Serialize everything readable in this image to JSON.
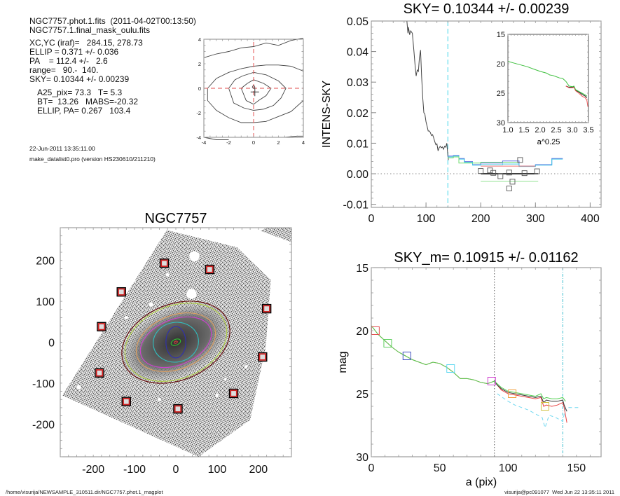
{
  "info": {
    "file_line": "NGC7757.phot.1.fits  (2011-04-02T00:13:50)",
    "mask_line": "NGC7757.1.final_mask_oulu.fits",
    "xcyc": "XC,YC (iraf)=   284.15, 278.73",
    "ellip": "ELLIP = 0.371 +/- 0.036",
    "pa": "PA    = 112.4 +/-   2.6",
    "range": "range=   90.-  140.",
    "sky": "SKY= 0.10344 +/- 0.00239",
    "a25": "A25_pix= 73.3   T= 5.3",
    "bt": "BT=  13.26   MABS=-20.32",
    "ellip_pa": "ELLIP, PA= 0.267   103.4",
    "date": "22-Jun-2011 13:35:11.00",
    "program": "make_datalist0.pro (version HS230610/211210)"
  },
  "footer": {
    "path": "/home/visurija/NEWSAMPLE_310511.dir/NGC7757.phot.1_magplot",
    "user_stamp": "visurija@pc091077  Wed Jun 22 13:35:11 2011"
  },
  "chart_data": [
    {
      "id": "centroid-contour",
      "type": "line",
      "title": "",
      "xlim": [
        -4,
        4
      ],
      "ylim": [
        -4,
        4
      ],
      "xticks": [
        "-4",
        "-2",
        "0",
        "2",
        "4"
      ],
      "yticks": [
        "-4",
        "-2",
        "0",
        "2",
        "4"
      ],
      "crosshair": {
        "x": 0,
        "y": 0,
        "color": "#e87070"
      },
      "center_marker": {
        "x": 0.1,
        "y": -0.3
      },
      "contours": [
        [
          [
            -4,
            2.5
          ],
          [
            -3,
            2.8
          ],
          [
            -2,
            3.0
          ],
          [
            -1,
            3.3
          ],
          [
            0,
            3.4
          ],
          [
            1,
            3.7
          ],
          [
            2,
            3.5
          ],
          [
            3,
            3.9
          ],
          [
            4,
            4.1
          ]
        ],
        [
          [
            4,
            1.4
          ],
          [
            3,
            1.8
          ],
          [
            2,
            1.9
          ],
          [
            1,
            1.9
          ],
          [
            0,
            1.8
          ],
          [
            -1,
            1.6
          ],
          [
            -2,
            1.3
          ],
          [
            -3,
            0.8
          ],
          [
            -3.7,
            0
          ],
          [
            -3.7,
            -1
          ],
          [
            -3,
            -1.8
          ],
          [
            -2,
            -2.4
          ],
          [
            -1,
            -2.8
          ],
          [
            0,
            -2.8
          ],
          [
            1,
            -2.7
          ],
          [
            2,
            -2.3
          ],
          [
            3,
            -1.9
          ],
          [
            4,
            -1.0
          ]
        ],
        [
          [
            -2,
            0
          ],
          [
            -1.5,
            0.7
          ],
          [
            -0.9,
            1.0
          ],
          [
            0,
            1.3
          ],
          [
            1,
            1.1
          ],
          [
            2,
            0.6
          ],
          [
            2.6,
            0
          ],
          [
            2.2,
            -0.8
          ],
          [
            1.6,
            -1.4
          ],
          [
            0.8,
            -1.7
          ],
          [
            0,
            -1.8
          ],
          [
            -0.8,
            -1.6
          ],
          [
            -1.6,
            -1.2
          ],
          [
            -2,
            0
          ]
        ],
        [
          [
            -1,
            0
          ],
          [
            -0.5,
            0.4
          ],
          [
            0,
            0.7
          ],
          [
            0.8,
            0.4
          ],
          [
            1.4,
            0
          ],
          [
            1,
            -0.6
          ],
          [
            0.4,
            -1.0
          ],
          [
            0,
            -1.3
          ],
          [
            -0.6,
            -1.0
          ],
          [
            -1,
            0
          ]
        ],
        [
          [
            -4,
            -4
          ],
          [
            -3,
            -4.2
          ],
          [
            -2,
            -4.2
          ]
        ],
        [
          [
            2.5,
            -4
          ],
          [
            3.5,
            -3.9
          ],
          [
            4,
            -3.9
          ]
        ]
      ]
    },
    {
      "id": "intens-sky",
      "type": "line",
      "title": "SKY= 0.10344 +/- 0.00239",
      "xlabel": "",
      "ylabel": "INTENS-SKY",
      "xlim": [
        0,
        420
      ],
      "ylim": [
        -0.011,
        0.05
      ],
      "xticks": [
        0,
        100,
        200,
        300,
        400
      ],
      "yticks": [
        -0.01,
        0.0,
        0.01,
        0.02,
        0.03,
        0.04,
        0.05
      ],
      "ytick_labels": [
        "-0.01",
        "0.00",
        "0.01",
        "0.02",
        "0.03",
        "0.04",
        "0.05"
      ],
      "vline": {
        "x": 140,
        "color": "#6fe0f0",
        "style": "dashed"
      },
      "hline": {
        "y": 0,
        "style": "dotted"
      },
      "series": [
        {
          "name": "profile",
          "color": "#444444",
          "x": [
            65,
            67,
            68,
            70,
            72,
            75,
            78,
            80,
            82,
            84,
            86,
            88,
            90,
            92,
            94,
            96,
            98,
            100,
            102,
            104,
            106,
            108,
            110,
            112,
            114,
            116,
            118,
            120,
            122,
            124,
            126,
            128,
            130,
            132,
            134,
            136,
            138,
            140,
            141
          ],
          "y": [
            0.05,
            0.046,
            0.048,
            0.0455,
            0.0468,
            0.046,
            0.04,
            0.0355,
            0.032,
            0.034,
            0.0335,
            0.038,
            0.0405,
            0.032,
            0.025,
            0.02,
            0.0195,
            0.017,
            0.0155,
            0.014,
            0.014,
            0.0135,
            0.0125,
            0.0128,
            0.0118,
            0.0105,
            0.0095,
            0.0098,
            0.0075,
            0.0085,
            0.009,
            0.0085,
            0.0088,
            0.008,
            0.009,
            0.0087,
            0.01,
            0.006,
            0.0045
          ]
        },
        {
          "name": "step-blue",
          "color": "#6070e0",
          "x": [
            140,
            150,
            150,
            160,
            160,
            170,
            170,
            185,
            185,
            200,
            200,
            240,
            240,
            270,
            270,
            300,
            300,
            330,
            330,
            350
          ],
          "y": [
            0.0058,
            0.0058,
            0.006,
            0.006,
            0.005,
            0.005,
            0.004,
            0.004,
            0.003,
            0.003,
            0.0035,
            0.0035,
            0.0042,
            0.0042,
            0.0025,
            0.0025,
            0.003,
            0.003,
            0.005,
            0.005
          ]
        },
        {
          "name": "step-cyan",
          "color": "#40c8e8",
          "x": [
            140,
            150,
            150,
            160,
            160,
            170,
            170,
            185,
            185,
            200,
            200,
            240,
            240,
            270,
            270,
            300,
            300,
            330,
            330,
            350
          ],
          "y": [
            0.0055,
            0.0055,
            0.0058,
            0.0058,
            0.0048,
            0.0048,
            0.0038,
            0.0038,
            0.0028,
            0.0028,
            0.003,
            0.003,
            0.0032,
            0.0032,
            0.0024,
            0.0024,
            0.0028,
            0.0028,
            0.0048,
            0.0048
          ]
        },
        {
          "name": "step-green",
          "color": "#70dd70",
          "x": [
            140,
            150,
            150,
            160,
            160,
            200,
            200,
            270
          ],
          "y": [
            0.0052,
            0.0052,
            0.0055,
            0.0055,
            0.0035,
            0.0035,
            0.0038,
            0.0038
          ]
        },
        {
          "name": "sky-red",
          "color": "#f07070",
          "x": [
            200,
            300
          ],
          "y": [
            0.0025,
            0.0025
          ]
        },
        {
          "name": "sky-black",
          "color": "#000000",
          "x": [
            200,
            305
          ],
          "y": [
            0.0,
            0.0
          ]
        },
        {
          "name": "sky-green",
          "color": "#90e090",
          "x": [
            200,
            305
          ],
          "y": [
            -0.0025,
            -0.0025
          ]
        }
      ],
      "points": {
        "marker": "square",
        "color": "#555555",
        "x": [
          200,
          217,
          223,
          236,
          252,
          258,
          252,
          280,
          303,
          272
        ],
        "y": [
          0.0009,
          0.0011,
          0.0003,
          -0.0008,
          0.0004,
          -0.0026,
          -0.0048,
          0.0002,
          0.0008,
          0.0045
        ]
      },
      "inset": {
        "xlabel": "a^0.25",
        "xlim": [
          1.0,
          3.5
        ],
        "ylim": [
          15,
          30
        ],
        "y_inverted": true,
        "xticks": [
          "1.0",
          "1.5",
          "2.0",
          "2.5",
          "3.0",
          "3.5"
        ],
        "yticks": [
          "15",
          "20",
          "25",
          "30"
        ],
        "series": [
          {
            "name": "black",
            "color": "#222222",
            "x": [
              2.8,
              2.9,
              3.0,
              3.05,
              3.1,
              3.2,
              3.3,
              3.4,
              3.45
            ],
            "y": [
              23.8,
              24.0,
              24.0,
              23.9,
              24.5,
              24.8,
              25.2,
              25.5,
              25.8
            ]
          },
          {
            "name": "red",
            "color": "#f05050",
            "x": [
              2.8,
              2.9,
              3.0,
              3.05,
              3.1,
              3.2,
              3.3,
              3.4,
              3.45,
              3.48
            ],
            "y": [
              23.8,
              24.1,
              24.1,
              24.0,
              24.6,
              25.0,
              25.5,
              25.8,
              26.2,
              27.3
            ]
          },
          {
            "name": "green",
            "color": "#40c040",
            "x": [
              1.0,
              1.2,
              1.4,
              1.6,
              1.8,
              2.0,
              2.2,
              2.3,
              2.4,
              2.5,
              2.6,
              2.7,
              2.8,
              2.9,
              3.0,
              3.05,
              3.1,
              3.2,
              3.3,
              3.4,
              3.45
            ],
            "y": [
              19.6,
              19.9,
              20.2,
              20.5,
              20.9,
              21.3,
              21.6,
              21.9,
              22.0,
              22.2,
              22.4,
              22.5,
              23.0,
              23.8,
              23.9,
              23.8,
              24.4,
              24.7,
              25.0,
              25.3,
              25.5
            ]
          }
        ]
      }
    },
    {
      "id": "galaxy-image",
      "type": "scatter",
      "title": "NGC7757",
      "xlim": [
        -280,
        280
      ],
      "ylim": [
        -280,
        280
      ],
      "xticks": [
        -200,
        -100,
        0,
        100,
        200
      ],
      "yticks": [
        -200,
        -100,
        0,
        100,
        200
      ],
      "sky_boxes": {
        "color": "#cc2020",
        "x": [
          -28,
          82,
          -132,
          220,
          -180,
          210,
          -185,
          -120,
          5,
          140
        ],
        "y": [
          193,
          178,
          123,
          82,
          38,
          -36,
          -75,
          -145,
          -163,
          -125
        ]
      },
      "ellipses": [
        {
          "color": "#e04040",
          "a": 4,
          "b": 2.5
        },
        {
          "color": "#30c030",
          "a": 12,
          "b": 7
        },
        {
          "color": "#3030b0",
          "a": 24,
          "b": 38,
          "pa": 90
        },
        {
          "color": "#30c0c0",
          "a": 55,
          "b": 48,
          "pa": 100
        },
        {
          "color": "#d040d0",
          "a": 90,
          "b": 55
        },
        {
          "color": "#e0a060",
          "a": 100,
          "b": 65
        },
        {
          "color": "#b0d040",
          "a": 128,
          "b": 88
        },
        {
          "color": "#600000",
          "a": 136,
          "b": 92
        }
      ]
    },
    {
      "id": "mag-profile",
      "type": "line",
      "title": "SKY_m=  0.10915 +/- 0.01162",
      "xlabel": "a (pix)",
      "ylabel": "mag",
      "xlim": [
        0,
        168
      ],
      "ylim": [
        15,
        30
      ],
      "y_inverted": true,
      "xticks": [
        0,
        50,
        100,
        150
      ],
      "yticks": [
        15,
        20,
        25,
        30
      ],
      "vlines": [
        {
          "x": 90,
          "color": "#555555",
          "style": "dotted"
        },
        {
          "x": 140,
          "color": "#40c0d0",
          "style": "dashdot"
        }
      ],
      "series": [
        {
          "name": "cyan-dashed",
          "color": "#6fd8f0",
          "dashed": true,
          "x": [
            92,
            96,
            100,
            105,
            110,
            115,
            120,
            125,
            127,
            130,
            135,
            140,
            142,
            145,
            152
          ],
          "y": [
            25.0,
            25.3,
            25.6,
            25.9,
            26.1,
            26.3,
            26.6,
            26.9,
            27.7,
            26.7,
            26.9,
            27.2,
            26.1,
            26.1,
            26.1
          ]
        },
        {
          "name": "red",
          "color": "#e84040",
          "x": [
            0,
            5,
            10,
            15,
            20,
            25,
            30,
            35,
            40,
            45,
            50,
            55,
            60,
            65,
            70,
            75,
            80,
            85,
            90,
            92,
            95,
            100,
            110,
            120,
            124,
            126,
            128,
            132,
            136,
            140,
            141,
            143
          ],
          "y": [
            19.6,
            20.3,
            20.8,
            21.3,
            21.7,
            22.0,
            22.3,
            22.5,
            22.7,
            22.5,
            22.6,
            22.9,
            23.3,
            23.8,
            23.8,
            23.9,
            24.1,
            24.2,
            24.0,
            24.3,
            24.7,
            25.0,
            25.2,
            25.4,
            25.3,
            26.0,
            25.9,
            26.0,
            25.9,
            25.7,
            26.1,
            27.3
          ]
        },
        {
          "name": "black",
          "color": "#333333",
          "x": [
            90,
            92,
            95,
            100,
            110,
            120,
            124,
            126,
            128,
            132,
            136,
            140,
            141,
            143
          ],
          "y": [
            24.0,
            24.3,
            24.6,
            24.9,
            25.1,
            25.3,
            25.2,
            25.7,
            25.5,
            25.6,
            25.6,
            25.5,
            25.9,
            26.4
          ]
        },
        {
          "name": "green",
          "color": "#50d050",
          "x": [
            0,
            5,
            10,
            15,
            20,
            25,
            30,
            35,
            40,
            45,
            50,
            55,
            60,
            65,
            70,
            75,
            80,
            85,
            90,
            92,
            95,
            100,
            110,
            120,
            124,
            126,
            128,
            132,
            136,
            140,
            142
          ],
          "y": [
            19.6,
            20.3,
            20.8,
            21.3,
            21.7,
            22.0,
            22.3,
            22.5,
            22.7,
            22.5,
            22.6,
            22.9,
            23.3,
            23.8,
            23.8,
            23.9,
            24.1,
            24.2,
            24.0,
            24.2,
            24.5,
            24.8,
            25.0,
            25.2,
            25.0,
            25.4,
            25.3,
            25.4,
            25.4,
            25.3,
            25.6
          ]
        }
      ],
      "markers": [
        {
          "x": 3,
          "y": 20.0,
          "color": "#e05050"
        },
        {
          "x": 12,
          "y": 21.0,
          "color": "#60d060"
        },
        {
          "x": 26,
          "y": 22.0,
          "color": "#4050c0"
        },
        {
          "x": 58,
          "y": 23.0,
          "color": "#60d8f0"
        },
        {
          "x": 88,
          "y": 24.0,
          "color": "#d040d0"
        },
        {
          "x": 103,
          "y": 25.0,
          "color": "#f0a040"
        },
        {
          "x": 127,
          "y": 26.0,
          "color": "#d0c040"
        }
      ]
    }
  ]
}
